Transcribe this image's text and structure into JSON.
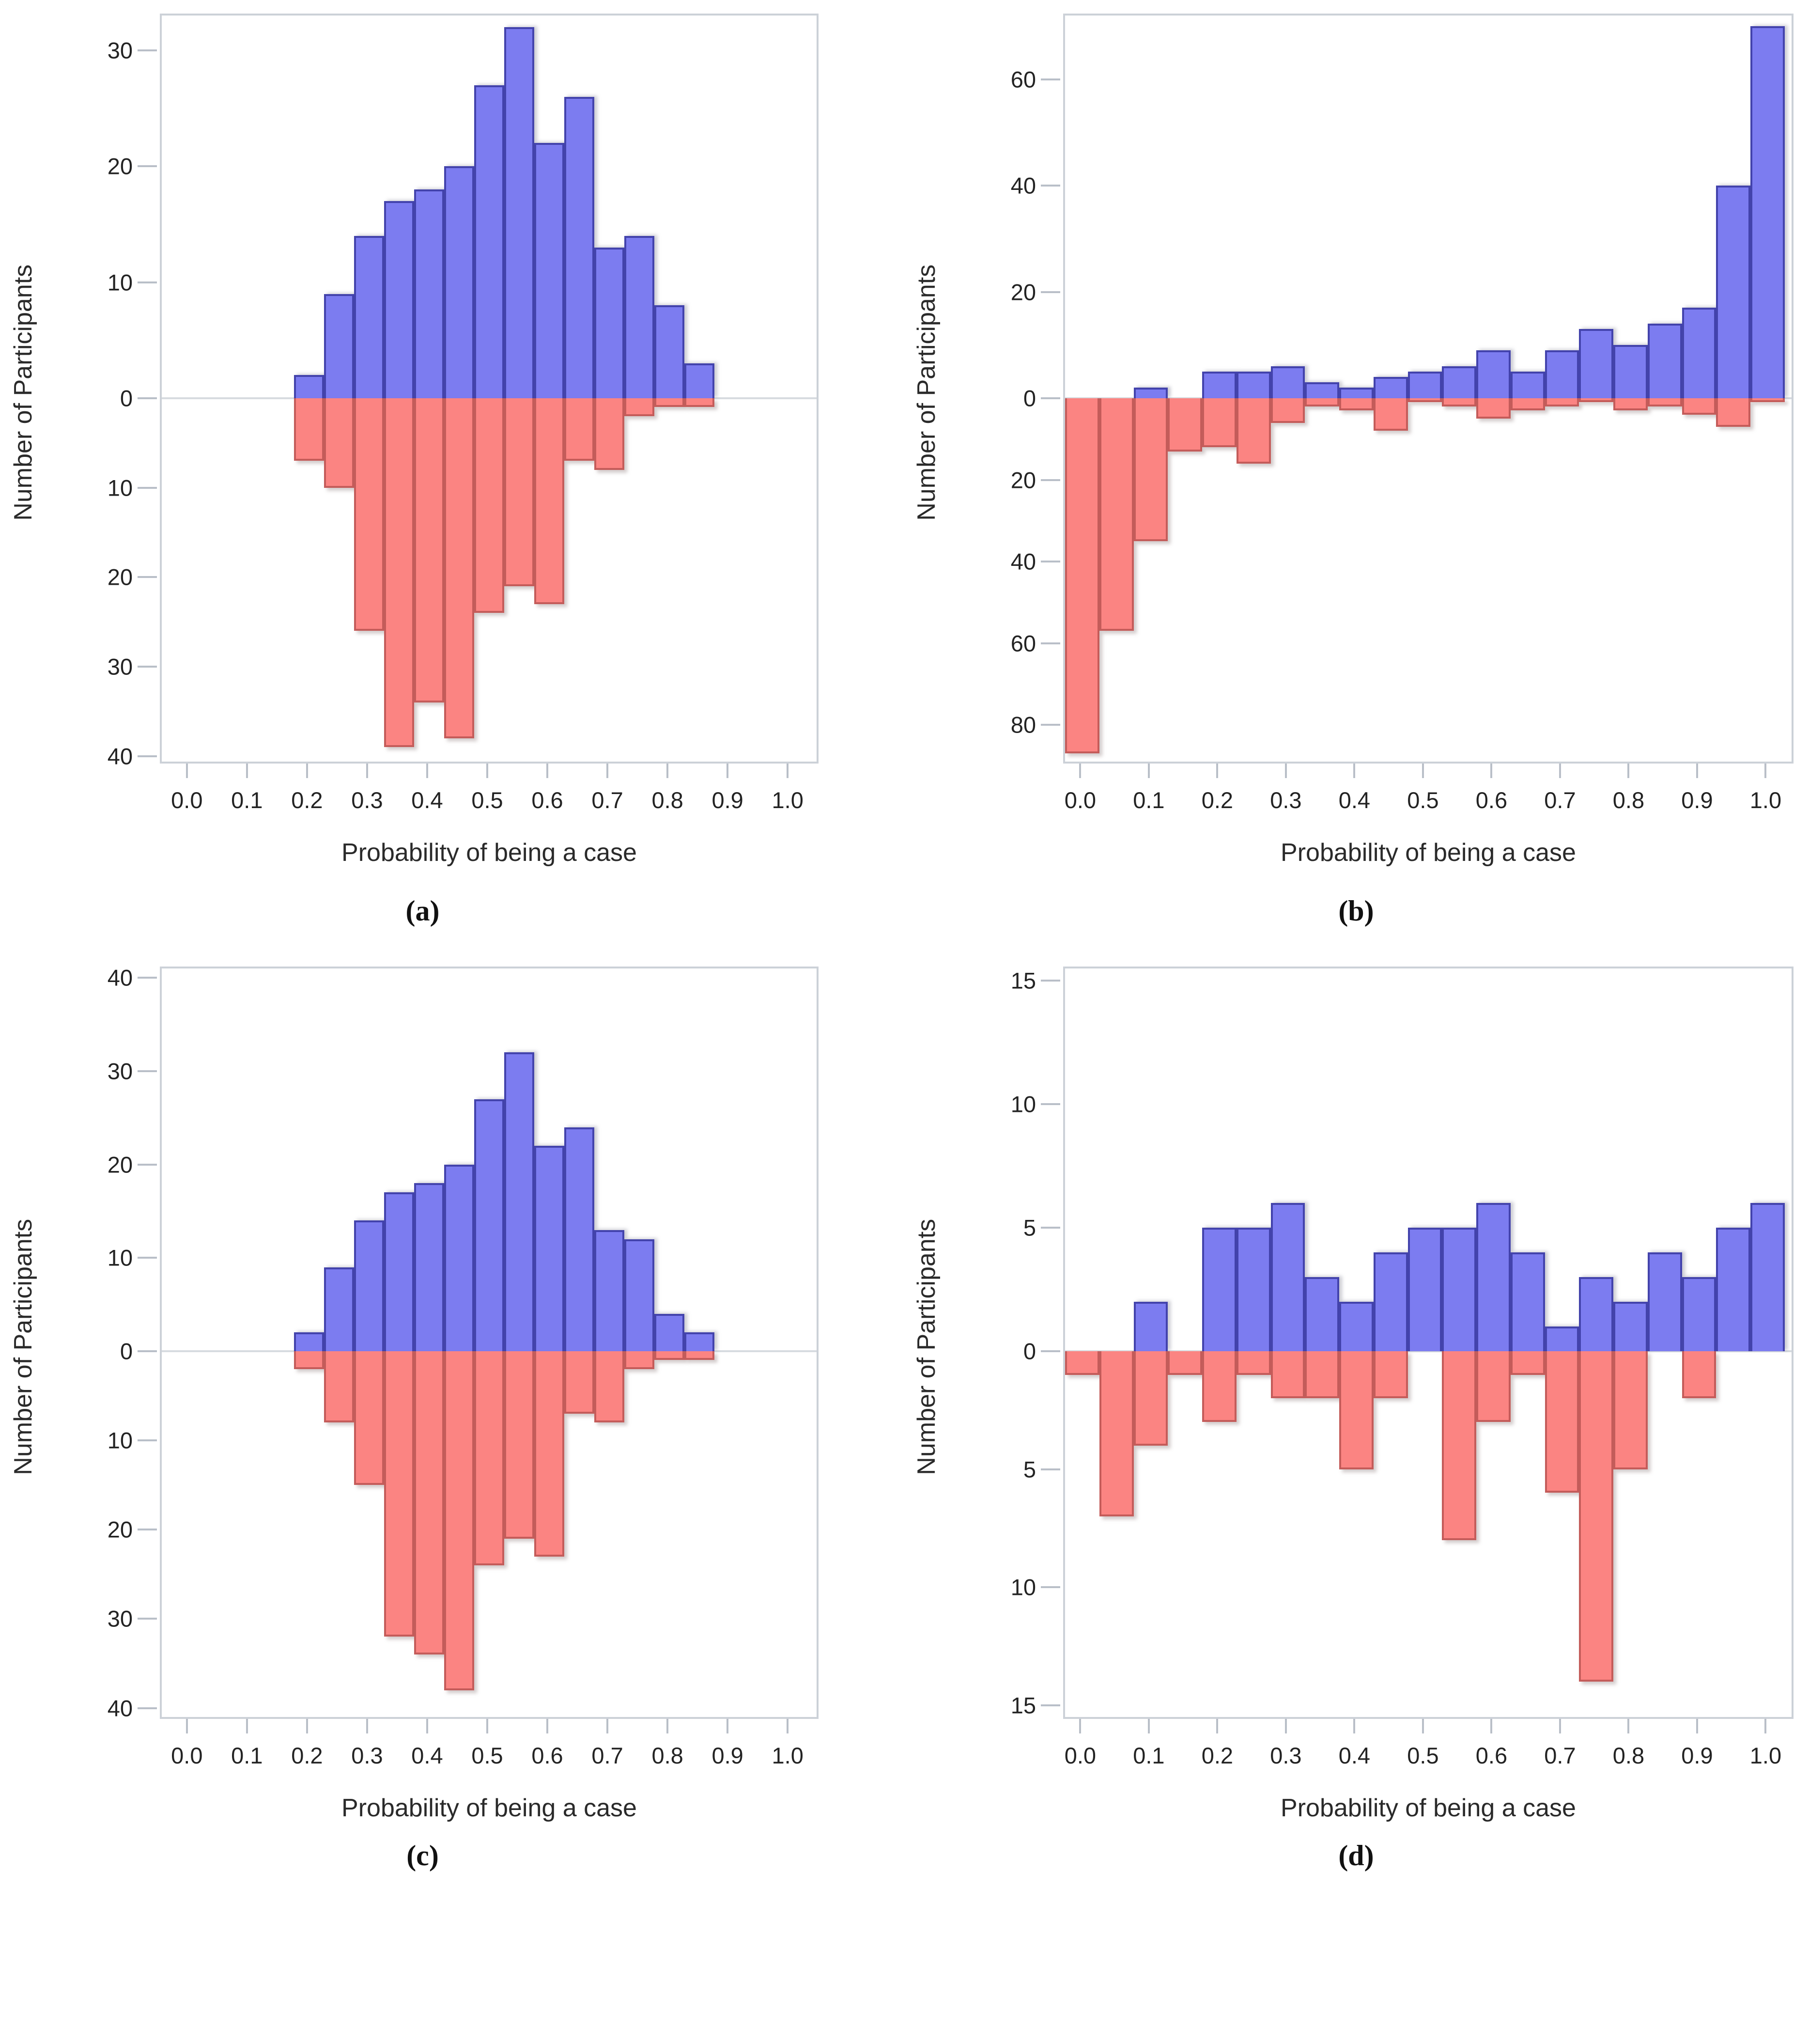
{
  "figure": {
    "background": "#ffffff",
    "bar_up_color": "#7c7cf0",
    "bar_up_border": "#4343ac",
    "bar_down_color": "#fb8482",
    "bar_down_border": "#c45c5a",
    "axis_color": "#ccd1d8"
  },
  "chart_data": [
    {
      "id": "a",
      "caption": "(a)",
      "type": "bar",
      "subtype": "mirror-histogram",
      "xlabel": "Probability of being a case",
      "ylabel": "Number of Participants",
      "bin_width": 0.05,
      "bin_centers": [
        0.2,
        0.25,
        0.3,
        0.35,
        0.4,
        0.45,
        0.5,
        0.55,
        0.6,
        0.65,
        0.7,
        0.75,
        0.8,
        0.85
      ],
      "series": [
        {
          "name": "upward",
          "direction": "up",
          "values": [
            2,
            9,
            14,
            17,
            18,
            20,
            27,
            32,
            22,
            26,
            13,
            14,
            8,
            3
          ]
        },
        {
          "name": "downward",
          "direction": "down",
          "values": [
            7,
            10,
            26,
            39,
            34,
            38,
            24,
            21,
            23,
            7,
            8,
            2,
            1,
            1
          ]
        }
      ],
      "x_ticks": [
        "0.0",
        "0.1",
        "0.2",
        "0.3",
        "0.4",
        "0.5",
        "0.6",
        "0.7",
        "0.8",
        "0.9",
        "1.0"
      ],
      "y_ticks_up": [
        0,
        10,
        20,
        30
      ],
      "y_ticks_down": [
        10,
        20,
        30,
        40
      ],
      "y_max_up": 33,
      "y_max_down": 40.6,
      "x_domain": [
        -0.045,
        1.045
      ],
      "grid": false,
      "legend": "none"
    },
    {
      "id": "b",
      "caption": "(b)",
      "type": "bar",
      "subtype": "mirror-histogram",
      "xlabel": "Probability of being a case",
      "ylabel": "Number of Participants",
      "bin_width": 0.05,
      "bin_centers": [
        0.0,
        0.05,
        0.1,
        0.15,
        0.2,
        0.25,
        0.3,
        0.35,
        0.4,
        0.45,
        0.5,
        0.55,
        0.6,
        0.65,
        0.7,
        0.75,
        0.8,
        0.85,
        0.9,
        0.95,
        1.0
      ],
      "series": [
        {
          "name": "upward",
          "direction": "up",
          "values": [
            0,
            0,
            2,
            0,
            5,
            5,
            6,
            3,
            2,
            4,
            5,
            6,
            9,
            5,
            9,
            13,
            10,
            14,
            17,
            40,
            70
          ]
        },
        {
          "name": "downward",
          "direction": "down",
          "values": [
            87,
            57,
            35,
            13,
            12,
            16,
            6,
            2,
            3,
            8,
            1,
            2,
            5,
            3,
            2,
            1,
            3,
            2,
            4,
            7,
            1
          ]
        }
      ],
      "x_ticks": [
        "0.0",
        "0.1",
        "0.2",
        "0.3",
        "0.4",
        "0.5",
        "0.6",
        "0.7",
        "0.8",
        "0.9",
        "1.0"
      ],
      "y_ticks_up": [
        0,
        20,
        40,
        60
      ],
      "y_ticks_down": [
        20,
        40,
        60,
        80
      ],
      "y_max_up": 72,
      "y_max_down": 89,
      "x_domain": [
        -0.025,
        1.035
      ],
      "grid": false,
      "legend": "none"
    },
    {
      "id": "c",
      "caption": "(c)",
      "type": "bar",
      "subtype": "mirror-histogram",
      "xlabel": "Probability of being a case",
      "ylabel": "Number of Participants",
      "bin_width": 0.05,
      "bin_centers": [
        0.2,
        0.25,
        0.3,
        0.35,
        0.4,
        0.45,
        0.5,
        0.55,
        0.6,
        0.65,
        0.7,
        0.75,
        0.8,
        0.85
      ],
      "series": [
        {
          "name": "upward",
          "direction": "up",
          "values": [
            2,
            9,
            14,
            17,
            18,
            20,
            27,
            32,
            22,
            24,
            13,
            12,
            4,
            2
          ]
        },
        {
          "name": "downward",
          "direction": "down",
          "values": [
            2,
            8,
            15,
            32,
            34,
            38,
            24,
            21,
            23,
            7,
            8,
            2,
            1,
            1
          ]
        }
      ],
      "x_ticks": [
        "0.0",
        "0.1",
        "0.2",
        "0.3",
        "0.4",
        "0.5",
        "0.6",
        "0.7",
        "0.8",
        "0.9",
        "1.0"
      ],
      "y_ticks_up": [
        0,
        10,
        20,
        30,
        40
      ],
      "y_ticks_down": [
        10,
        20,
        30,
        40
      ],
      "y_max_up": 41,
      "y_max_down": 41,
      "x_domain": [
        -0.045,
        1.045
      ],
      "grid": false,
      "legend": "none"
    },
    {
      "id": "d",
      "caption": "(d)",
      "type": "bar",
      "subtype": "mirror-histogram",
      "xlabel": "Probability of being a case",
      "ylabel": "Number of Participants",
      "bin_width": 0.05,
      "bin_centers": [
        0.0,
        0.05,
        0.1,
        0.15,
        0.2,
        0.25,
        0.3,
        0.35,
        0.4,
        0.45,
        0.5,
        0.55,
        0.6,
        0.65,
        0.7,
        0.75,
        0.8,
        0.85,
        0.9,
        0.95,
        1.0
      ],
      "series": [
        {
          "name": "upward",
          "direction": "up",
          "values": [
            0,
            0,
            2,
            0,
            5,
            5,
            6,
            3,
            2,
            4,
            5,
            5,
            6,
            4,
            1,
            3,
            2,
            4,
            3,
            5,
            6
          ]
        },
        {
          "name": "downward",
          "direction": "down",
          "values": [
            1,
            7,
            4,
            1,
            3,
            1,
            2,
            2,
            5,
            2,
            0,
            8,
            3,
            1,
            6,
            14,
            5,
            0,
            2,
            0,
            0
          ]
        }
      ],
      "x_ticks": [
        "0.0",
        "0.1",
        "0.2",
        "0.3",
        "0.4",
        "0.5",
        "0.6",
        "0.7",
        "0.8",
        "0.9",
        "1.0"
      ],
      "y_ticks_up": [
        0,
        5,
        10,
        15
      ],
      "y_ticks_down": [
        5,
        10,
        15
      ],
      "y_max_up": 15.5,
      "y_max_down": 15.5,
      "x_domain": [
        -0.025,
        1.035
      ],
      "grid": false,
      "legend": "none"
    }
  ]
}
